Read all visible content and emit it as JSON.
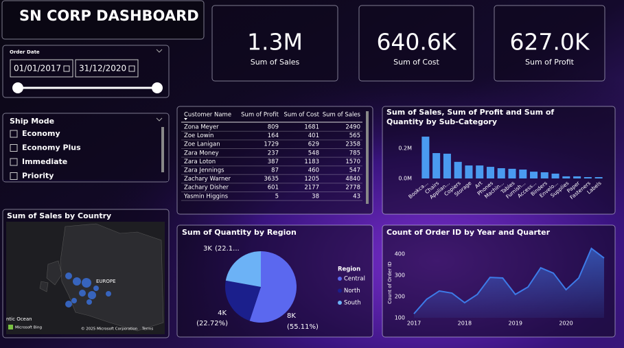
{
  "title": "SN CORP DASHBOARD",
  "kpis": [
    {
      "value": "1.3M",
      "label": "Sum of Sales"
    },
    {
      "value": "640.6K",
      "label": "Sum of Cost"
    },
    {
      "value": "627.0K",
      "label": "Sum of Profit"
    }
  ],
  "order_date": {
    "label": "Order Date",
    "start": "01/01/2017",
    "end": "31/12/2020"
  },
  "ship_mode": {
    "label": "Ship Mode",
    "options": [
      "Economy",
      "Economy Plus",
      "Immediate",
      "Priority"
    ]
  },
  "table": {
    "columns": [
      "Customer Name",
      "Sum of Profit",
      "Sum of Cost",
      "Sum of Sales"
    ],
    "rows": [
      [
        "Zona Meyer",
        809,
        1681,
        2490
      ],
      [
        "Zoe Lowin",
        164,
        401,
        565
      ],
      [
        "Zoe Lanigan",
        1729,
        629,
        2358
      ],
      [
        "Zara Money",
        237,
        548,
        785
      ],
      [
        "Zara Loton",
        387,
        1183,
        1570
      ],
      [
        "Zara Jennings",
        87,
        460,
        547
      ],
      [
        "Zachary Warner",
        3635,
        1205,
        4840
      ],
      [
        "Zachary Disher",
        601,
        2177,
        2778
      ],
      [
        "Yasmin Higgins",
        5,
        38,
        43
      ]
    ]
  },
  "map": {
    "title": "Sum of Sales by Country",
    "region_label": "EUROPE",
    "ocean_label": "ntic Ocean",
    "attribution": "Microsoft Bing",
    "copyright": "© 2025 Microsoft Corporation",
    "terms": "Terms"
  },
  "chart_data": [
    {
      "type": "bar",
      "title": "Sum of Sales, Sum of Profit and Sum of Quantity by Sub-Category",
      "categories": [
        "Bookca...",
        "Chairs",
        "Applian...",
        "Copiers",
        "Storage",
        "Art",
        "Phones",
        "Machin...",
        "Tables",
        "Furnish...",
        "Access...",
        "Binders",
        "Envelo...",
        "Supplies",
        "Paper",
        "Fasteners",
        "Labels"
      ],
      "values": [
        277000,
        168000,
        164000,
        110000,
        86000,
        86000,
        77000,
        68000,
        64000,
        59000,
        45000,
        41000,
        32000,
        14000,
        14000,
        9000,
        9000
      ],
      "color": "#4a9bf0",
      "ylim": [
        0,
        300000
      ],
      "yticks": [
        {
          "value": 0,
          "label": "0.0M"
        },
        {
          "value": 200000,
          "label": "0.2M"
        }
      ]
    },
    {
      "type": "pie",
      "title": "Sum of Quantity by Region",
      "legend_title": "Region",
      "categories": [
        "Central",
        "North",
        "South"
      ],
      "values": [
        55.11,
        22.72,
        22.17
      ],
      "quantity_labels": [
        "8K",
        "4K",
        "3K"
      ],
      "value_labels": [
        "(55.11%)",
        "(22.72%)",
        "(22.1..."
      ],
      "colors": [
        "#5b68ef",
        "#1b1f8c",
        "#6cb2f6"
      ]
    },
    {
      "type": "line",
      "title": "Count of Order ID by Year and Quarter",
      "y_label": "Count of Order ID",
      "categories": [
        "2017",
        null,
        null,
        null,
        "2018",
        null,
        null,
        null,
        "2019",
        null,
        null,
        null,
        "2020",
        null,
        null,
        null
      ],
      "values": [
        119,
        187,
        226,
        216,
        171,
        210,
        290,
        287,
        210,
        245,
        335,
        310,
        232,
        287,
        426,
        381
      ],
      "color": "#3d7be8",
      "ylim": [
        100,
        440
      ],
      "yticks": [
        100,
        200,
        300,
        400
      ]
    }
  ]
}
